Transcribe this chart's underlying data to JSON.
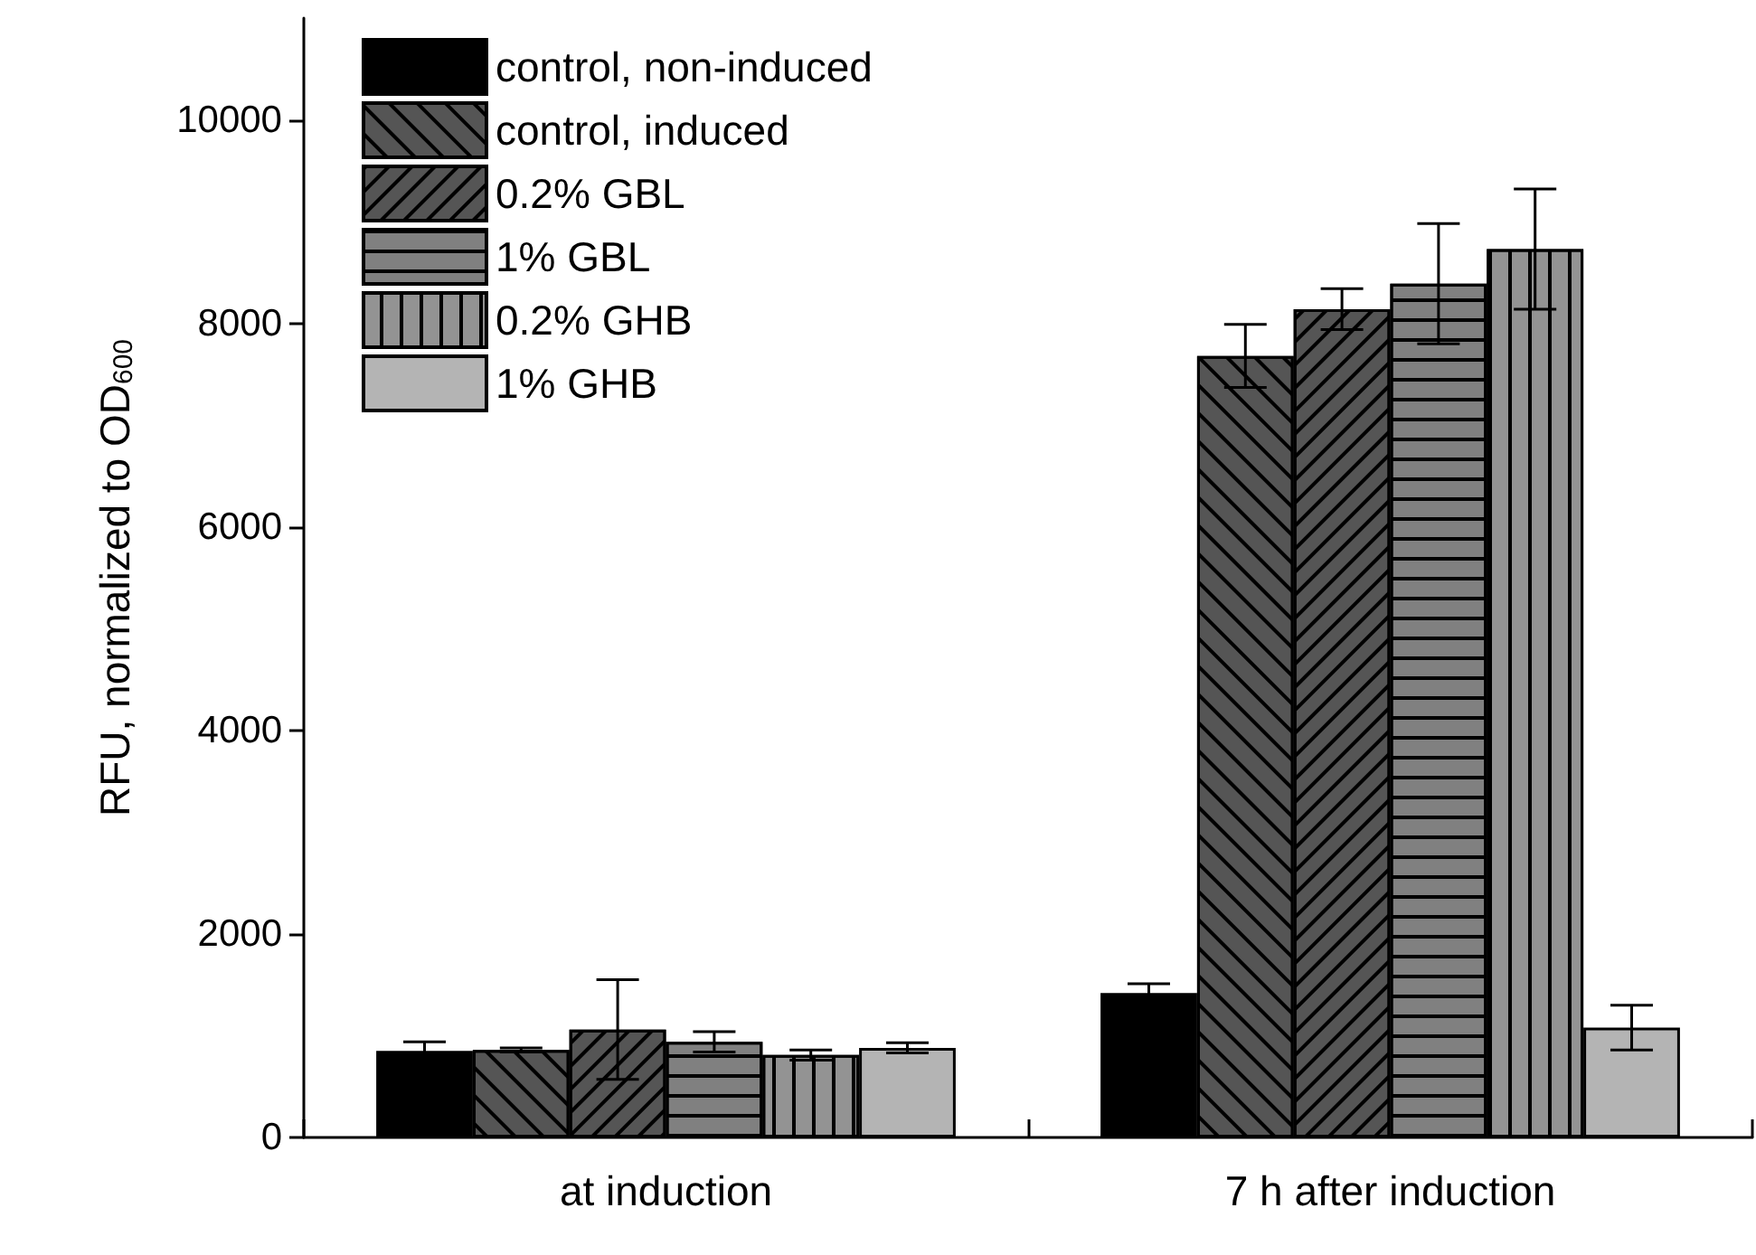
{
  "chart_data": {
    "type": "bar",
    "ylabel": "RFU, normalized to OD$_{600}$",
    "categories": [
      "at induction",
      "7 h after induction"
    ],
    "series": [
      {
        "name": "control, non-induced",
        "color": "#000000",
        "values": [
          850,
          1420
        ],
        "errors": [
          90,
          90
        ]
      },
      {
        "name": "control, induced",
        "color": "#555555",
        "values": [
          860,
          7680
        ],
        "errors": [
          20,
          310
        ]
      },
      {
        "name": "0.2% GBL",
        "color": "#555555",
        "values": [
          1060,
          8140
        ],
        "errors": [
          490,
          200
        ]
      },
      {
        "name": "1% GBL",
        "color": "#808080",
        "values": [
          940,
          8390
        ],
        "errors": [
          100,
          590
        ]
      },
      {
        "name": "0.2% GHB",
        "color": "#939393",
        "values": [
          810,
          8730
        ],
        "errors": [
          50,
          590
        ]
      },
      {
        "name": "1% GHB",
        "color": "#b4b4b4",
        "values": [
          880,
          1080
        ],
        "errors": [
          50,
          220
        ]
      }
    ],
    "ylim": [
      0,
      11000
    ],
    "yticks": [
      0,
      2000,
      4000,
      6000,
      8000,
      10000
    ],
    "grid": false,
    "legend": "top left"
  }
}
